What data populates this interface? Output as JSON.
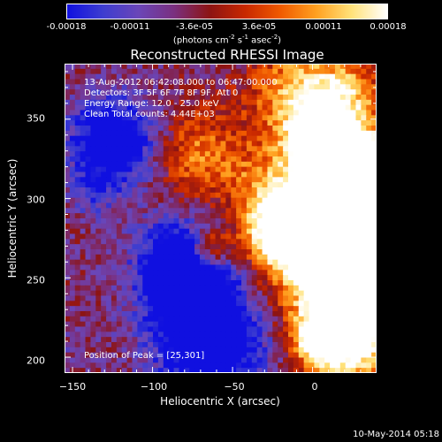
{
  "colorbar": {
    "ticks": [
      "-0.00018",
      "-0.00011",
      "-3.6e-05",
      "3.6e-05",
      "0.00011",
      "0.00018"
    ],
    "units_main": "(photons cm",
    "units_sup1": "-2",
    "units_mid": " s",
    "units_sup2": "-1",
    "units_end": " asec",
    "units_sup3": "-2",
    "units_close": ")"
  },
  "chart_data": {
    "type": "heatmap",
    "title": "Reconstructed RHESSI Image",
    "xlabel": "Heliocentric X (arcsec)",
    "ylabel": "Heliocentric Y (arcsec)",
    "xlim": [
      -155,
      40
    ],
    "ylim": [
      190,
      385
    ],
    "x_ticks": [
      "−150",
      "−100",
      "−50",
      "0"
    ],
    "x_tick_values": [
      -150,
      -100,
      -50,
      0
    ],
    "y_ticks": [
      "350",
      "300",
      "250",
      "200"
    ],
    "y_tick_values": [
      350,
      300,
      250,
      200
    ],
    "value_range": [
      -0.00018,
      0.00018
    ],
    "colormap": [
      "#1010e0",
      "#3d3dd0",
      "#6a46b8",
      "#7a3080",
      "#8c1414",
      "#c82800",
      "#f05a00",
      "#ffa020",
      "#ffe27a",
      "#ffffff"
    ],
    "peak_position": [
      25,
      301
    ]
  },
  "annotations": {
    "time": "13-Aug-2012 06:42:08.000 to 06:47:00.000",
    "detectors": "Detectors: 3F 5F 6F 7F 8F 9F, Att 0",
    "energy": "Energy Range: 12.0 - 25.0 keV",
    "clean": "Clean     Total counts: 4.44E+03",
    "peak": "Position of Peak = [25,301]"
  },
  "footer": {
    "timestamp": "10-May-2014 05:18"
  }
}
